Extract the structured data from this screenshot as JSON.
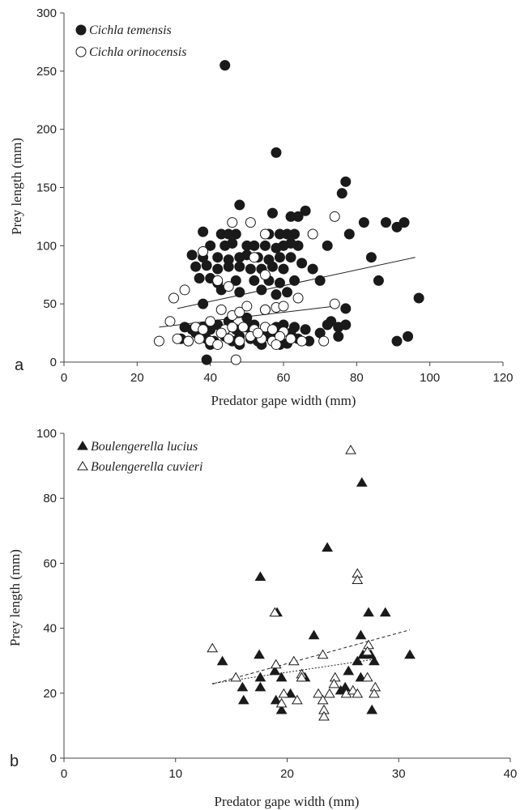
{
  "chart_data": [
    {
      "panel": "a",
      "type": "scatter",
      "xlabel": "Predator gape width (mm)",
      "ylabel": "Prey length (mm)",
      "xlim": [
        0,
        120
      ],
      "ylim": [
        0,
        300
      ],
      "xticks": [
        0,
        20,
        40,
        60,
        80,
        100,
        120
      ],
      "yticks": [
        0,
        50,
        100,
        150,
        200,
        250,
        300
      ],
      "legend_position": "top-left",
      "series": [
        {
          "name": "Cichla temensis",
          "marker": "filled-circle",
          "points": [
            [
              44,
              255
            ],
            [
              58,
              180
            ],
            [
              77,
              155
            ],
            [
              76,
              145
            ],
            [
              48,
              135
            ],
            [
              66,
              130
            ],
            [
              57,
              128
            ],
            [
              62,
              125
            ],
            [
              64,
              125
            ],
            [
              43,
              110
            ],
            [
              45,
              110
            ],
            [
              47,
              110
            ],
            [
              38,
              112
            ],
            [
              56,
              110
            ],
            [
              59,
              110
            ],
            [
              61,
              110
            ],
            [
              63,
              110
            ],
            [
              78,
              110
            ],
            [
              82,
              120
            ],
            [
              88,
              120
            ],
            [
              93,
              120
            ],
            [
              91,
              116
            ],
            [
              40,
              100
            ],
            [
              44,
              100
            ],
            [
              46,
              102
            ],
            [
              50,
              100
            ],
            [
              52,
              100
            ],
            [
              55,
              100
            ],
            [
              58,
              98
            ],
            [
              60,
              100
            ],
            [
              62,
              102
            ],
            [
              64,
              100
            ],
            [
              72,
              100
            ],
            [
              35,
              92
            ],
            [
              38,
              90
            ],
            [
              42,
              90
            ],
            [
              45,
              88
            ],
            [
              48,
              90
            ],
            [
              50,
              92
            ],
            [
              53,
              90
            ],
            [
              56,
              88
            ],
            [
              59,
              90
            ],
            [
              62,
              90
            ],
            [
              36,
              82
            ],
            [
              39,
              83
            ],
            [
              42,
              80
            ],
            [
              45,
              82
            ],
            [
              48,
              82
            ],
            [
              51,
              80
            ],
            [
              54,
              80
            ],
            [
              57,
              82
            ],
            [
              60,
              80
            ],
            [
              65,
              85
            ],
            [
              68,
              80
            ],
            [
              84,
              90
            ],
            [
              37,
              72
            ],
            [
              40,
              72
            ],
            [
              42,
              68
            ],
            [
              47,
              70
            ],
            [
              52,
              70
            ],
            [
              56,
              70
            ],
            [
              59,
              68
            ],
            [
              63,
              70
            ],
            [
              70,
              70
            ],
            [
              86,
              70
            ],
            [
              43,
              62
            ],
            [
              48,
              60
            ],
            [
              54,
              62
            ],
            [
              58,
              58
            ],
            [
              61,
              60
            ],
            [
              55,
              45
            ],
            [
              38,
              50
            ],
            [
              77,
              46
            ],
            [
              97,
              55
            ],
            [
              33,
              30
            ],
            [
              35,
              28
            ],
            [
              38,
              30
            ],
            [
              40,
              28
            ],
            [
              42,
              32
            ],
            [
              45,
              30
            ],
            [
              47,
              28
            ],
            [
              50,
              30
            ],
            [
              52,
              32
            ],
            [
              55,
              28
            ],
            [
              58,
              30
            ],
            [
              60,
              32
            ],
            [
              63,
              30
            ],
            [
              66,
              28
            ],
            [
              73,
              35
            ],
            [
              75,
              30
            ],
            [
              77,
              32
            ],
            [
              32,
              20
            ],
            [
              34,
              18
            ],
            [
              37,
              22
            ],
            [
              39,
              20
            ],
            [
              41,
              18
            ],
            [
              44,
              22
            ],
            [
              46,
              18
            ],
            [
              48,
              22
            ],
            [
              51,
              20
            ],
            [
              53,
              18
            ],
            [
              56,
              22
            ],
            [
              58,
              20
            ],
            [
              61,
              16
            ],
            [
              64,
              20
            ],
            [
              67,
              18
            ],
            [
              70,
              25
            ],
            [
              75,
              22
            ],
            [
              91,
              18
            ],
            [
              94,
              22
            ],
            [
              39,
              2
            ],
            [
              36,
              25
            ],
            [
              40,
              15
            ],
            [
              43,
              25
            ],
            [
              48,
              15
            ],
            [
              54,
              15
            ],
            [
              59,
              15
            ],
            [
              62,
              25
            ],
            [
              45,
              35
            ],
            [
              50,
              38
            ],
            [
              55,
              25
            ],
            [
              72,
              32
            ]
          ]
        },
        {
          "name": "Cichla orinocensis",
          "marker": "open-circle",
          "points": [
            [
              74,
              125
            ],
            [
              55,
              110
            ],
            [
              68,
              110
            ],
            [
              46,
              120
            ],
            [
              51,
              120
            ],
            [
              38,
              95
            ],
            [
              52,
              90
            ],
            [
              30,
              55
            ],
            [
              33,
              62
            ],
            [
              42,
              70
            ],
            [
              45,
              65
            ],
            [
              55,
              75
            ],
            [
              64,
              55
            ],
            [
              74,
              50
            ],
            [
              43,
              45
            ],
            [
              46,
              40
            ],
            [
              48,
              43
            ],
            [
              50,
              48
            ],
            [
              55,
              45
            ],
            [
              58,
              47
            ],
            [
              60,
              48
            ],
            [
              29,
              35
            ],
            [
              40,
              35
            ],
            [
              36,
              30
            ],
            [
              38,
              28
            ],
            [
              44,
              28
            ],
            [
              46,
              30
            ],
            [
              49,
              30
            ],
            [
              52,
              28
            ],
            [
              55,
              30
            ],
            [
              57,
              28
            ],
            [
              60,
              26
            ],
            [
              26,
              18
            ],
            [
              31,
              20
            ],
            [
              34,
              18
            ],
            [
              37,
              20
            ],
            [
              40,
              18
            ],
            [
              42,
              15
            ],
            [
              45,
              20
            ],
            [
              48,
              18
            ],
            [
              51,
              22
            ],
            [
              54,
              20
            ],
            [
              57,
              18
            ],
            [
              59,
              22
            ],
            [
              62,
              20
            ],
            [
              65,
              18
            ],
            [
              71,
              18
            ],
            [
              47,
              2
            ],
            [
              43,
              25
            ],
            [
              53,
              25
            ],
            [
              58,
              15
            ]
          ]
        }
      ],
      "trendlines": [
        {
          "series": "Cichla temensis",
          "style": "solid",
          "x": [
            31,
            96
          ],
          "y": [
            46,
            90
          ]
        },
        {
          "series": "Cichla orinocensis",
          "style": "solid",
          "x": [
            26,
            74
          ],
          "y": [
            30,
            48
          ]
        }
      ]
    },
    {
      "panel": "b",
      "type": "scatter",
      "xlabel": "Predator gape width (mm)",
      "ylabel": "Prey length (mm)",
      "xlim": [
        0,
        40
      ],
      "ylim": [
        0,
        100
      ],
      "xticks": [
        0,
        10,
        20,
        30,
        40
      ],
      "yticks": [
        0,
        20,
        40,
        60,
        80,
        100
      ],
      "legend_position": "top-left",
      "series": [
        {
          "name": "Boulengerella lucius",
          "marker": "filled-triangle",
          "points": [
            [
              26.7,
              85
            ],
            [
              23.6,
              65
            ],
            [
              17.6,
              56
            ],
            [
              19.1,
              45
            ],
            [
              27.3,
              45
            ],
            [
              28.8,
              45
            ],
            [
              26.6,
              38
            ],
            [
              22.4,
              38
            ],
            [
              31.0,
              32
            ],
            [
              14.2,
              30
            ],
            [
              17.5,
              32
            ],
            [
              18.9,
              27
            ],
            [
              19.5,
              25
            ],
            [
              21.6,
              25
            ],
            [
              25.5,
              27
            ],
            [
              26.3,
              30
            ],
            [
              26.8,
              32
            ],
            [
              27.5,
              32
            ],
            [
              27.8,
              30
            ],
            [
              16.0,
              22
            ],
            [
              17.6,
              22
            ],
            [
              17.6,
              25
            ],
            [
              19.0,
              18
            ],
            [
              19.5,
              15
            ],
            [
              20.3,
              20
            ],
            [
              24.8,
              21
            ],
            [
              25.2,
              22
            ],
            [
              26.6,
              25
            ],
            [
              16.1,
              18
            ],
            [
              27.6,
              15
            ]
          ]
        },
        {
          "name": "Boulengerella cuvieri",
          "marker": "open-triangle",
          "points": [
            [
              25.7,
              95
            ],
            [
              26.3,
              57
            ],
            [
              26.3,
              55
            ],
            [
              18.9,
              45
            ],
            [
              13.3,
              34
            ],
            [
              27.3,
              35
            ],
            [
              27.2,
              33
            ],
            [
              23.2,
              32
            ],
            [
              15.4,
              25
            ],
            [
              19.0,
              29
            ],
            [
              20.6,
              30
            ],
            [
              21.3,
              26
            ],
            [
              21.3,
              25
            ],
            [
              22.8,
              20
            ],
            [
              23.2,
              18
            ],
            [
              23.3,
              15
            ],
            [
              23.3,
              13
            ],
            [
              23.8,
              20
            ],
            [
              24.3,
              25
            ],
            [
              24.2,
              23
            ],
            [
              19.7,
              20
            ],
            [
              19.5,
              17
            ],
            [
              20.9,
              18
            ],
            [
              25.3,
              20
            ],
            [
              25.9,
              21
            ],
            [
              26.3,
              20
            ],
            [
              27.2,
              25
            ],
            [
              27.9,
              22
            ],
            [
              27.8,
              20
            ]
          ]
        }
      ],
      "trendlines": [
        {
          "series": "Boulengerella lucius",
          "style": "dashed",
          "x": [
            13.3,
            31.0
          ],
          "y": [
            22.8,
            39.5
          ]
        },
        {
          "series": "Boulengerella cuvieri",
          "style": "dotted",
          "x": [
            13.3,
            27.9
          ],
          "y": [
            23.0,
            30.5
          ]
        }
      ]
    }
  ]
}
